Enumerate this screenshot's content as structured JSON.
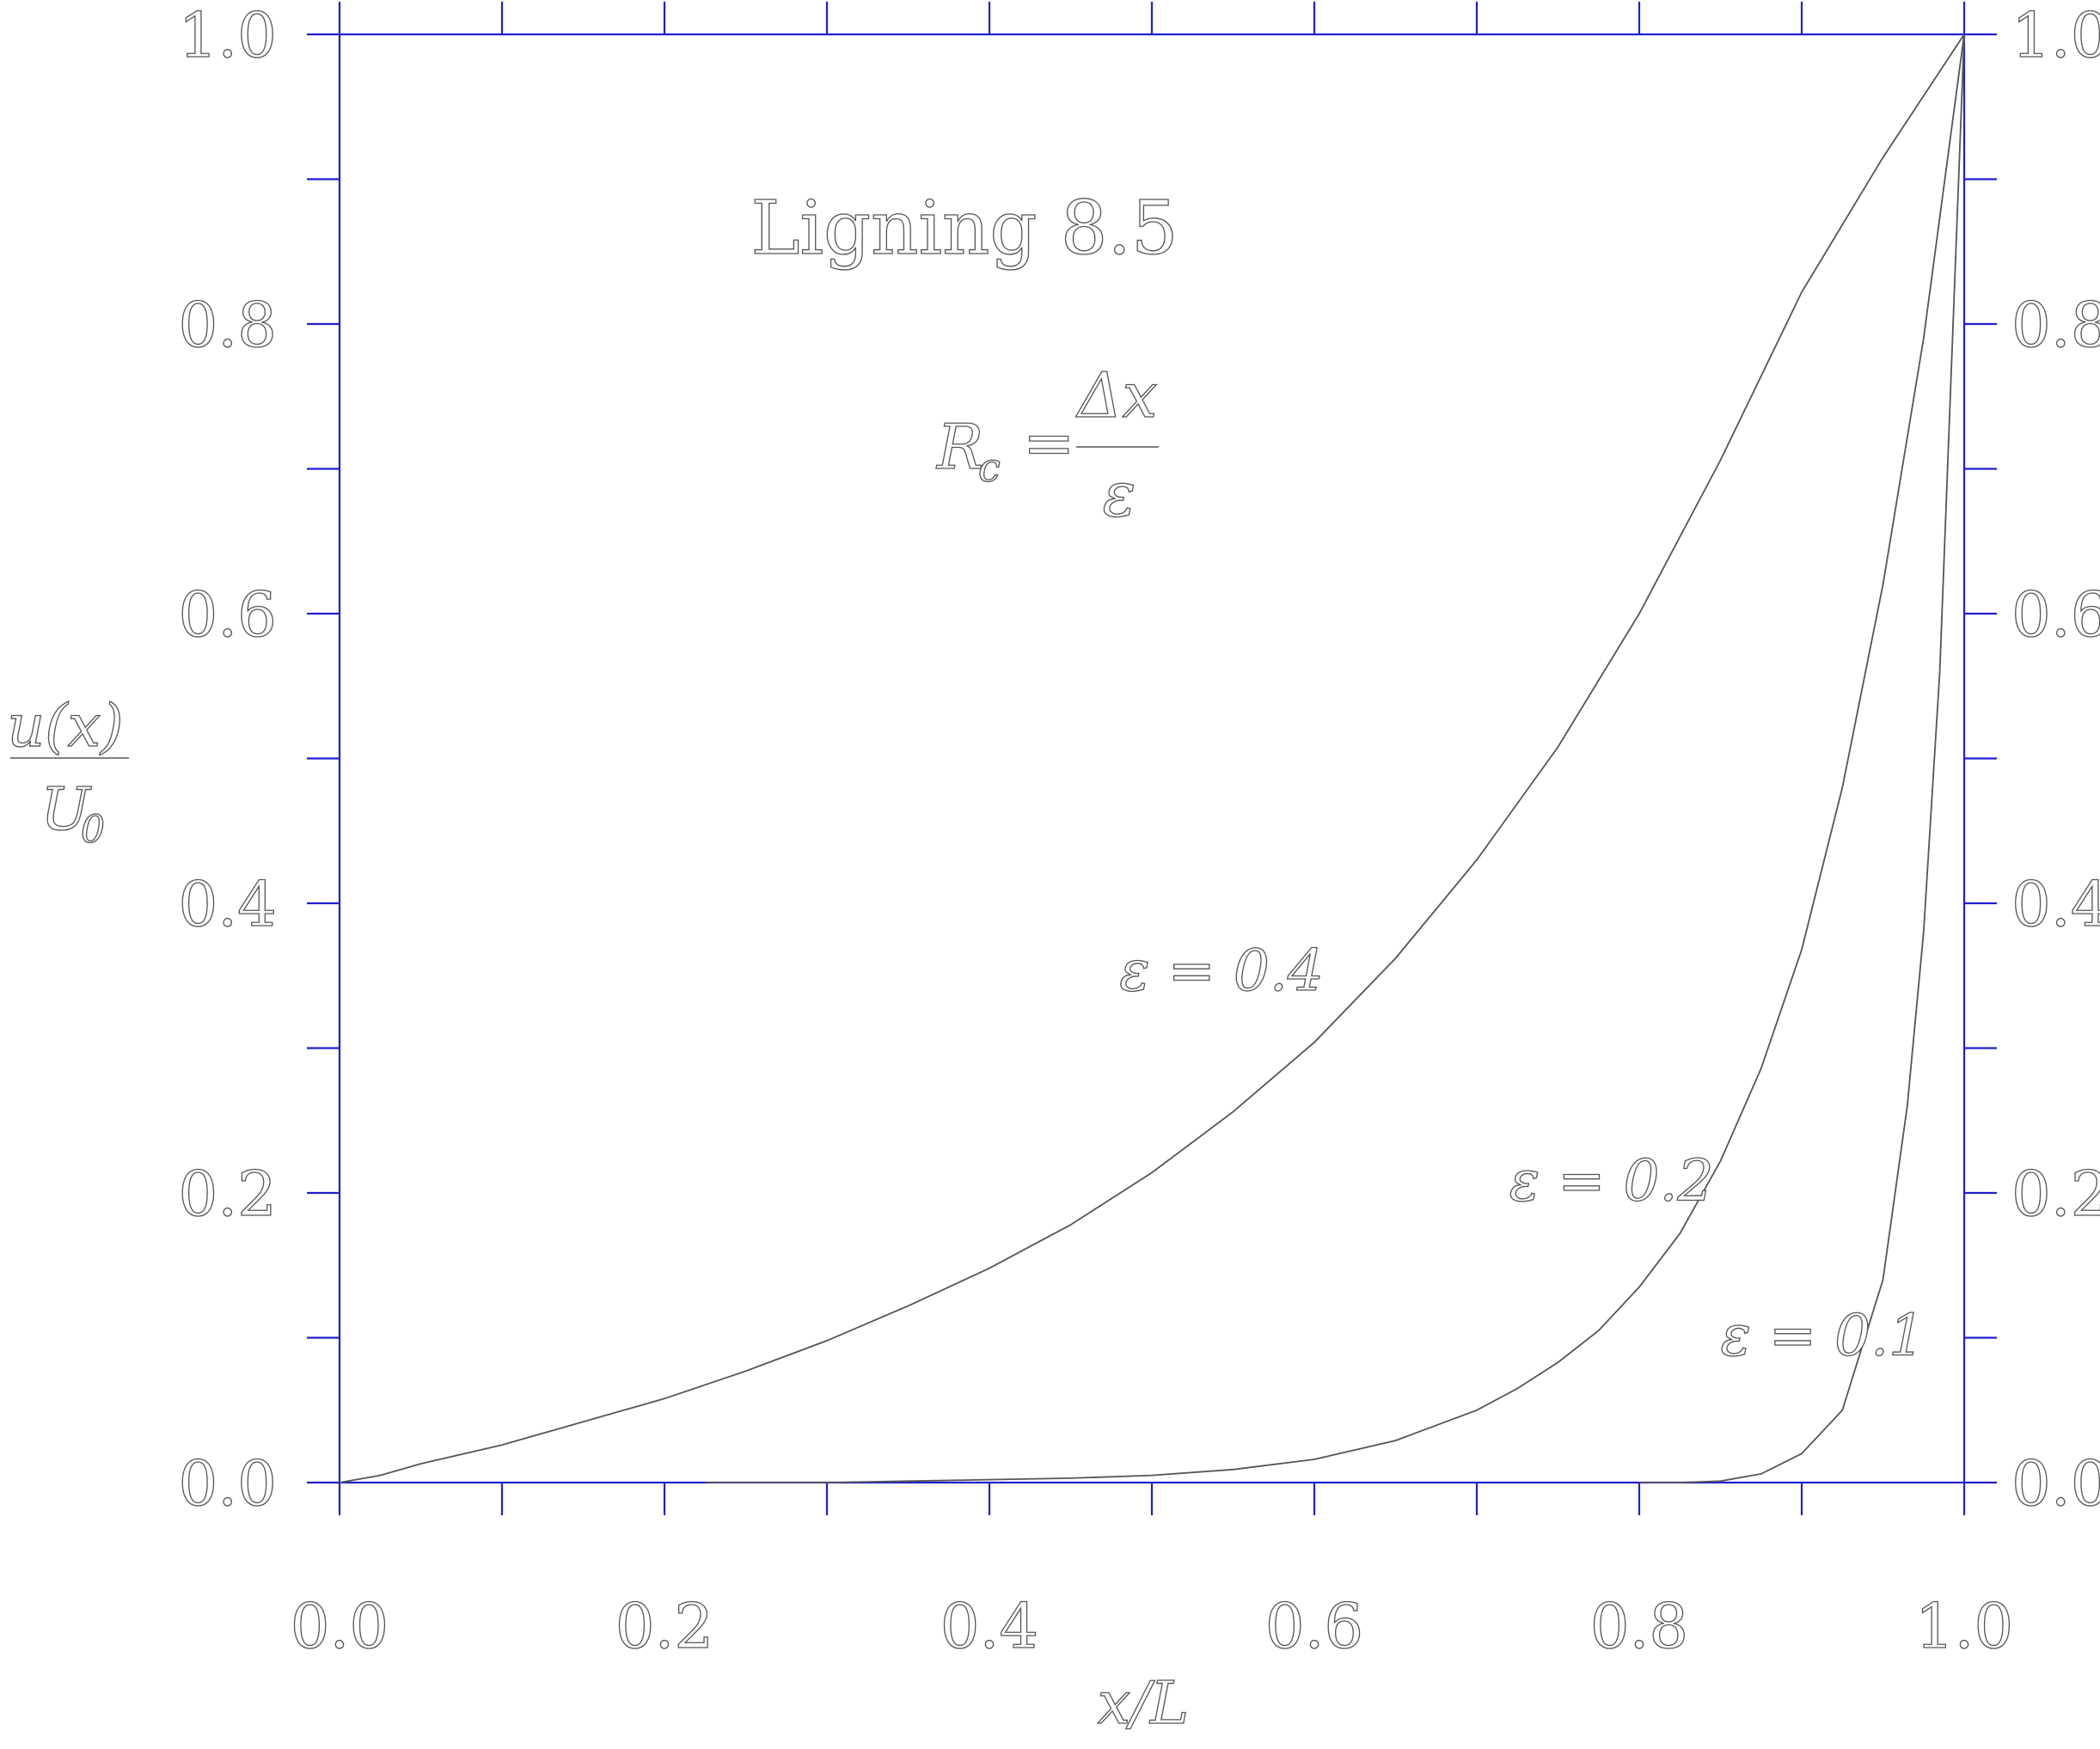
{
  "chart_data": {
    "type": "line",
    "title": "Ligning 8.5",
    "formula": {
      "lhs": "R",
      "lhs_sub": "c",
      "eq": "=",
      "numerator": "Δx",
      "denominator": "ε"
    },
    "xlabel": "x/L",
    "ylabel": {
      "numerator": "u(x)",
      "denominator": "U",
      "denominator_sub": "0"
    },
    "xlim": [
      0,
      1
    ],
    "ylim": [
      0,
      1
    ],
    "x_ticks": [
      "0.0",
      "0.2",
      "0.4",
      "0.6",
      "0.8",
      "1.0"
    ],
    "y_ticks": [
      "0.0",
      "0.2",
      "0.4",
      "0.6",
      "0.8",
      "1.0"
    ],
    "grid": false,
    "series": [
      {
        "name": "ε = 0.4",
        "label_at": [
          0.48,
          0.34
        ],
        "x": [
          0.0,
          0.025,
          0.05,
          0.1,
          0.15,
          0.2,
          0.25,
          0.3,
          0.35,
          0.4,
          0.45,
          0.5,
          0.55,
          0.6,
          0.65,
          0.7,
          0.75,
          0.8,
          0.85,
          0.9,
          0.95,
          1.0
        ],
        "y": [
          0.0,
          0.005,
          0.013,
          0.026,
          0.042,
          0.058,
          0.077,
          0.098,
          0.122,
          0.148,
          0.178,
          0.214,
          0.256,
          0.304,
          0.362,
          0.43,
          0.508,
          0.6,
          0.706,
          0.822,
          0.915,
          1.0
        ]
      },
      {
        "name": "ε = 0.2",
        "label_at": [
          0.72,
          0.195
        ],
        "x": [
          0.225,
          0.3,
          0.35,
          0.4,
          0.45,
          0.5,
          0.55,
          0.6,
          0.65,
          0.7,
          0.725,
          0.75,
          0.775,
          0.8,
          0.825,
          0.85,
          0.875,
          0.9,
          0.925,
          0.95,
          0.975,
          1.0
        ],
        "y": [
          0.0,
          0.0,
          0.001,
          0.002,
          0.003,
          0.005,
          0.009,
          0.016,
          0.029,
          0.05,
          0.065,
          0.083,
          0.105,
          0.135,
          0.172,
          0.222,
          0.286,
          0.368,
          0.48,
          0.62,
          0.79,
          1.0
        ]
      },
      {
        "name": "ε = 0.1",
        "label_at": [
          0.85,
          0.088
        ],
        "x": [
          0.8,
          0.825,
          0.85,
          0.875,
          0.9,
          0.925,
          0.95,
          0.965,
          0.975,
          0.985,
          1.0
        ],
        "y": [
          0.0,
          0.0,
          0.001,
          0.006,
          0.02,
          0.05,
          0.14,
          0.26,
          0.38,
          0.56,
          1.0
        ]
      }
    ]
  }
}
